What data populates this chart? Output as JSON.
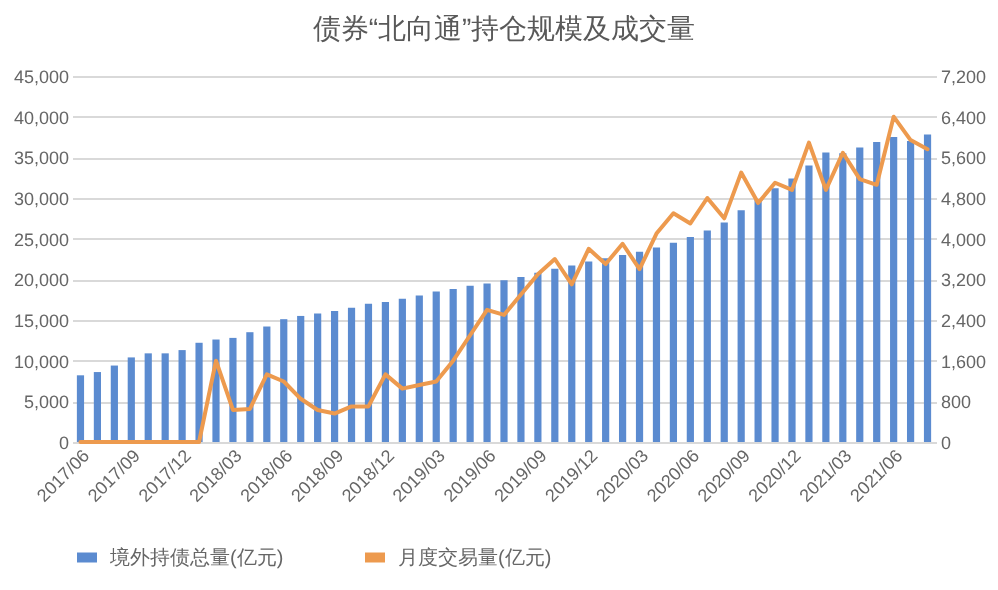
{
  "chart_data": {
    "type": "bar",
    "title": "债券“北向通”持仓规模及成交量",
    "categories": [
      "2017/06",
      null,
      null,
      "2017/09",
      null,
      null,
      "2017/12",
      null,
      null,
      "2018/03",
      null,
      null,
      "2018/06",
      null,
      null,
      "2018/09",
      null,
      null,
      "2018/12",
      null,
      null,
      "2019/03",
      null,
      null,
      "2019/06",
      null,
      null,
      "2019/09",
      null,
      null,
      "2019/12",
      null,
      null,
      "2020/03",
      null,
      null,
      "2020/06",
      null,
      null,
      "2020/09",
      null,
      null,
      "2020/12",
      null,
      null,
      "2021/03",
      null,
      null,
      "2021/06",
      null,
      null
    ],
    "series": [
      {
        "name": "境外持债总量(亿元)",
        "color": "#5b8bd0",
        "values": [
          8200,
          8600,
          9400,
          10400,
          10900,
          10900,
          11300,
          12200,
          12600,
          12800,
          13500,
          14200,
          15100,
          15500,
          15800,
          16100,
          16500,
          17000,
          17200,
          17600,
          18000,
          18500,
          18800,
          19200,
          19500,
          19900,
          20300,
          20800,
          21300,
          21700,
          22200,
          22600,
          23000,
          23400,
          23900,
          24500,
          25200,
          26000,
          27000,
          28500,
          29800,
          31200,
          32400,
          34000,
          35600,
          35500,
          36200,
          36900,
          37500,
          37000,
          37800
        ]
      },
      {
        "name": "月度交易量(亿元)",
        "type": "line",
        "axis": "y2",
        "color": "#ed9a4e",
        "values": [
          0,
          0,
          0,
          0,
          0,
          0,
          0,
          0,
          1600,
          630,
          650,
          1330,
          1190,
          850,
          630,
          560,
          700,
          700,
          1330,
          1050,
          1120,
          1190,
          1600,
          2100,
          2600,
          2500,
          2900,
          3300,
          3600,
          3100,
          3800,
          3500,
          3900,
          3400,
          4100,
          4500,
          4300,
          4800,
          4400,
          5300,
          4700,
          5100,
          4960,
          5890,
          4960,
          5690,
          5170,
          5060,
          6400,
          5940,
          5760
        ]
      }
    ],
    "ylim": [
      0,
      45000
    ],
    "yticks": [
      {
        "value": 0,
        "label": "0"
      },
      {
        "value": 5000,
        "label": "5,000"
      },
      {
        "value": 10000,
        "label": "10,000"
      },
      {
        "value": 15000,
        "label": "15,000"
      },
      {
        "value": 20000,
        "label": "20,000"
      },
      {
        "value": 25000,
        "label": "25,000"
      },
      {
        "value": 30000,
        "label": "30,000"
      },
      {
        "value": 35000,
        "label": "35,000"
      },
      {
        "value": 40000,
        "label": "40,000"
      },
      {
        "value": 45000,
        "label": "45,000"
      }
    ],
    "y2lim": [
      0,
      7200
    ],
    "y2ticks": [
      0,
      800,
      {
        "value": 1600,
        "label": "1,600"
      },
      {
        "value": 2400,
        "label": "2,400"
      },
      {
        "value": 3200,
        "label": "3,200"
      },
      {
        "value": 4000,
        "label": "4,000"
      },
      {
        "value": 4800,
        "label": "4,800"
      },
      {
        "value": 5600,
        "label": "5,600"
      },
      {
        "value": 6400,
        "label": "6,400"
      },
      {
        "value": 7200,
        "label": "7,200"
      }
    ],
    "grid": "y",
    "legend": "bottom"
  }
}
